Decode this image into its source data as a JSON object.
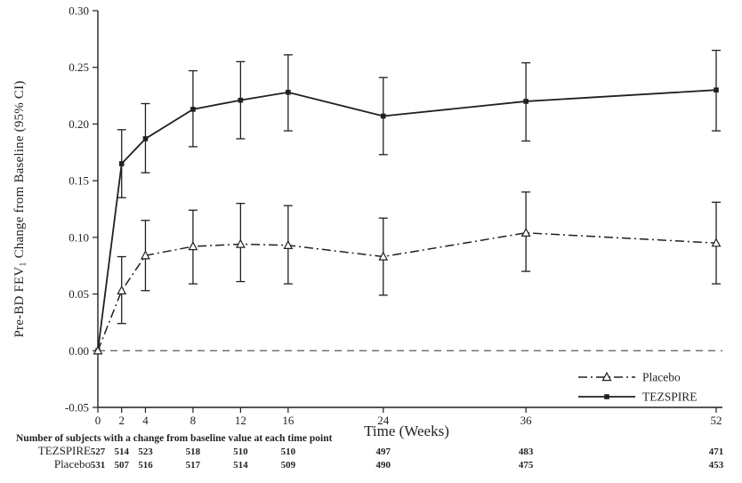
{
  "chart_data": {
    "type": "line",
    "title": "",
    "xlabel": "Time (Weeks)",
    "ylabel": "Pre-BD FEV1 Change from Baseline (95% CI)",
    "ylabel_parts": {
      "pre": "Pre-BD FEV",
      "sub": "1",
      "post": " Change from Baseline (95% CI)"
    },
    "x": [
      0,
      2,
      4,
      8,
      12,
      16,
      24,
      36,
      52
    ],
    "xlim": [
      0,
      52
    ],
    "ylim": [
      -0.05,
      0.3
    ],
    "yticks": [
      0.3,
      0.25,
      0.2,
      0.15,
      0.1,
      0.05,
      0.0,
      -0.05
    ],
    "grid": false,
    "reference_line_y": 0.0,
    "legend_position": "lower-right-inside",
    "series": [
      {
        "name": "TEZSPIRE",
        "line": "solid",
        "marker": "filled-square-icon",
        "values": [
          0.0,
          0.165,
          0.187,
          0.213,
          0.221,
          0.228,
          0.207,
          0.22,
          0.23
        ],
        "ci_low": [
          null,
          0.135,
          0.157,
          0.18,
          0.187,
          0.194,
          0.173,
          0.185,
          0.194
        ],
        "ci_high": [
          null,
          0.195,
          0.218,
          0.247,
          0.255,
          0.261,
          0.241,
          0.254,
          0.265
        ]
      },
      {
        "name": "Placebo",
        "line": "dash-dot",
        "marker": "open-triangle-icon",
        "values": [
          0.0,
          0.053,
          0.084,
          0.092,
          0.094,
          0.093,
          0.083,
          0.104,
          0.095
        ],
        "ci_low": [
          null,
          0.024,
          0.053,
          0.059,
          0.061,
          0.059,
          0.049,
          0.07,
          0.059
        ],
        "ci_high": [
          null,
          0.083,
          0.115,
          0.124,
          0.13,
          0.128,
          0.117,
          0.14,
          0.131
        ]
      }
    ],
    "legend": [
      {
        "label": "Placebo"
      },
      {
        "label": "TEZSPIRE"
      }
    ]
  },
  "subjects_table": {
    "heading": "Number of subjects with a change from baseline value at each time point",
    "rows": [
      {
        "label": "TEZSPIRE",
        "counts": [
          527,
          514,
          523,
          518,
          510,
          510,
          497,
          483,
          471
        ]
      },
      {
        "label": "Placebo",
        "counts": [
          531,
          507,
          516,
          517,
          514,
          509,
          490,
          475,
          453
        ]
      }
    ]
  },
  "colors": {
    "line": "#231f20",
    "axis": "#231f20",
    "text": "#231f20",
    "reference": "#5a5a5a",
    "background": "#ffffff"
  }
}
